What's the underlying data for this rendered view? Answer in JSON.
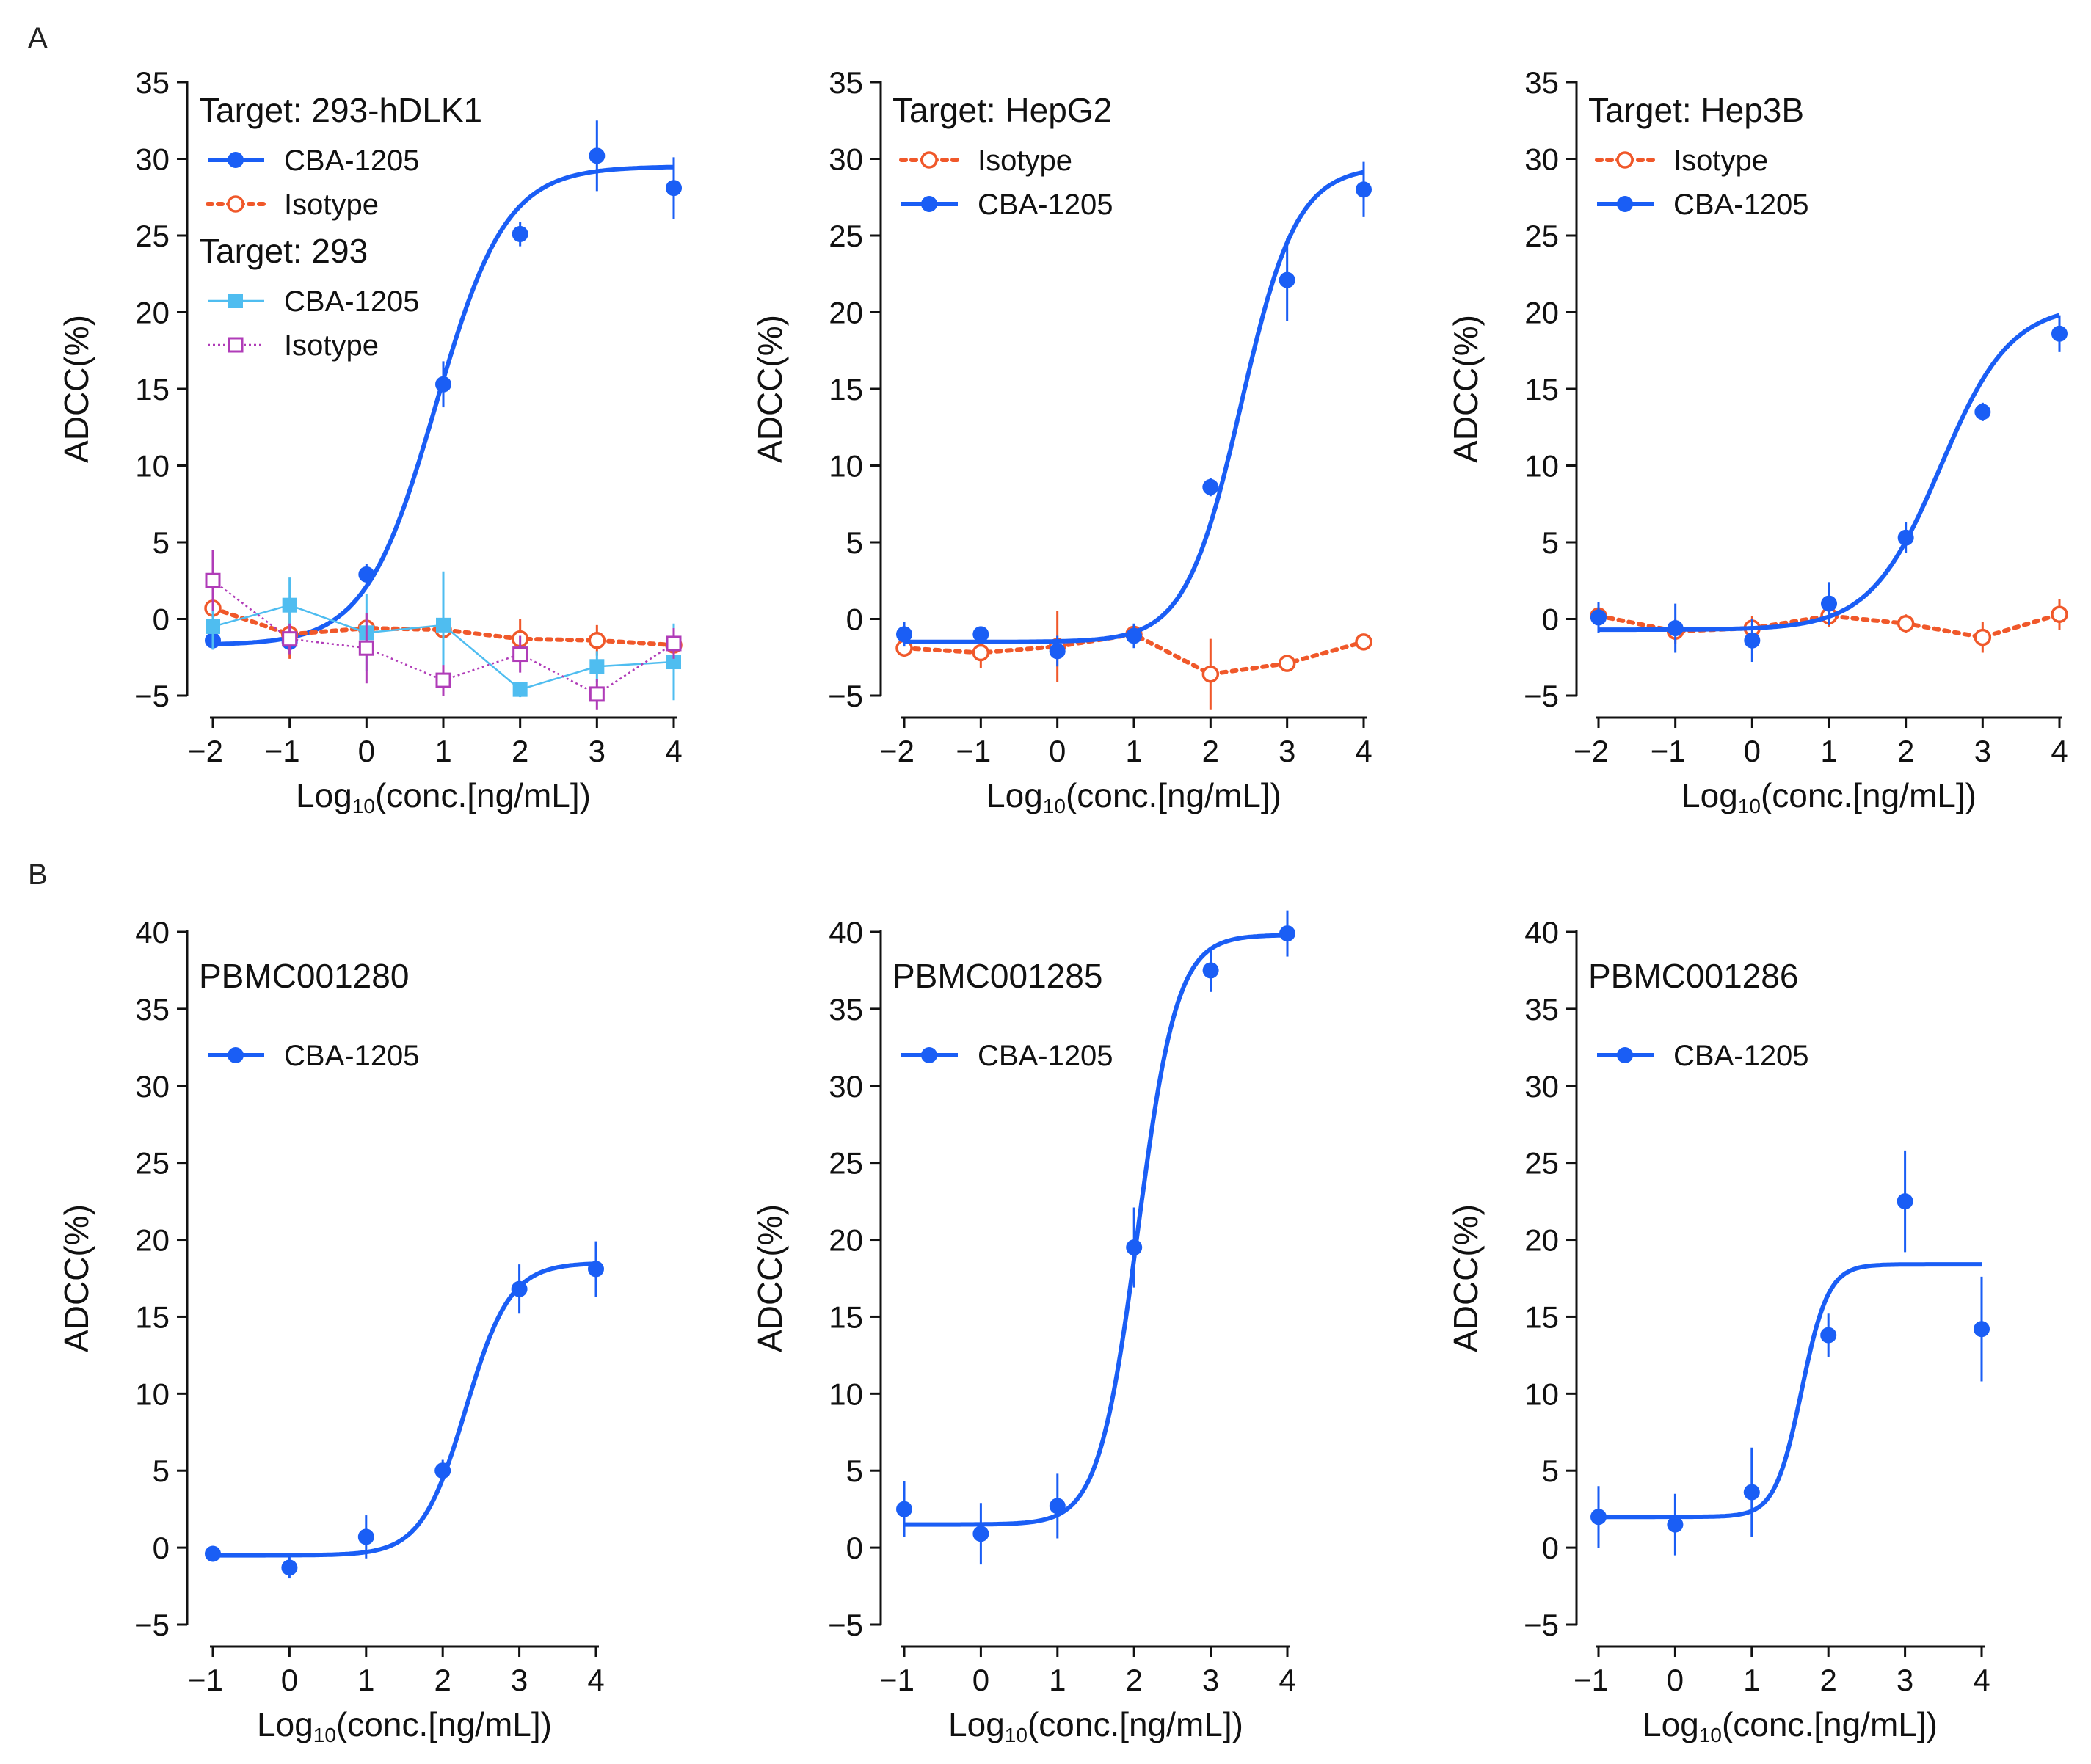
{
  "panel_labels": {
    "A": "A",
    "B": "B"
  },
  "colors": {
    "blue": "#1a5ef5",
    "orange": "#f0582a",
    "lightblue": "#4fbdf0",
    "purple": "#b03cb8",
    "axis": "#111111"
  },
  "chart_data": [
    {
      "type": "line",
      "panel": "A",
      "ylabel": "ADCC(%)",
      "xlabel": "Log10(conc.[ng/mL])",
      "ylim": [
        -5,
        35
      ],
      "xlim": [
        -2,
        4
      ],
      "yticks": [
        -5,
        0,
        5,
        10,
        15,
        20,
        25,
        30,
        35
      ],
      "xticks": [
        -2,
        -1,
        0,
        1,
        2,
        3,
        4
      ],
      "annotations": [
        "Target: 293-hDLK1",
        "Target: 293"
      ],
      "legend": [
        {
          "label": "CBA-1205",
          "series": 0
        },
        {
          "label": "Isotype",
          "series": 1
        },
        {
          "label": "CBA-1205",
          "series": 2
        },
        {
          "label": "Isotype",
          "series": 3
        }
      ],
      "series": [
        {
          "name": "CBA-1205",
          "target": "293-hDLK1",
          "color": "#1a5ef5",
          "marker": "circle-filled",
          "line": "sigmoid",
          "x": [
            -2,
            -1,
            0,
            1,
            2,
            3,
            4
          ],
          "y": [
            -1.4,
            -1.5,
            2.9,
            15.3,
            25.1,
            30.2,
            28.1
          ],
          "err": [
            0.6,
            0.8,
            0.7,
            1.5,
            0.8,
            2.3,
            2.0
          ],
          "fit": {
            "bottom": -1.7,
            "top": 29.5,
            "logEC50": 0.9,
            "hill": 0.95
          }
        },
        {
          "name": "Isotype",
          "target": "293-hDLK1",
          "color": "#f0582a",
          "marker": "circle-open",
          "line": "dotted",
          "x": [
            -2,
            -1,
            0,
            1,
            2,
            3,
            4
          ],
          "y": [
            0.7,
            -1.0,
            -0.6,
            -0.7,
            -1.3,
            -1.4,
            -1.7
          ],
          "err": [
            1.0,
            1.6,
            1.0,
            1.2,
            1.3,
            1.0,
            0.7
          ]
        },
        {
          "name": "CBA-1205",
          "target": "293",
          "color": "#4fbdf0",
          "marker": "square-filled",
          "line": "solid-thin",
          "x": [
            -2,
            -1,
            0,
            1,
            2,
            3,
            4
          ],
          "y": [
            -0.5,
            0.9,
            -0.9,
            -0.4,
            -4.6,
            -3.1,
            -2.8
          ],
          "err": [
            1.5,
            1.8,
            2.5,
            3.5,
            0.5,
            1.0,
            2.5
          ]
        },
        {
          "name": "Isotype",
          "target": "293",
          "color": "#b03cb8",
          "marker": "square-open",
          "line": "dotted-thin",
          "x": [
            -2,
            -1,
            0,
            1,
            2,
            3,
            4
          ],
          "y": [
            2.5,
            -1.3,
            -1.9,
            -4.0,
            -2.3,
            -4.9,
            -1.6
          ],
          "err": [
            2.0,
            1.0,
            2.3,
            1.0,
            1.2,
            1.0,
            1.0
          ]
        }
      ]
    },
    {
      "type": "line",
      "panel": "A",
      "ylabel": "ADCC(%)",
      "xlabel": "Log10(conc.[ng/mL])",
      "ylim": [
        -5,
        35
      ],
      "xlim": [
        -2,
        4
      ],
      "yticks": [
        -5,
        0,
        5,
        10,
        15,
        20,
        25,
        30,
        35
      ],
      "xticks": [
        -2,
        -1,
        0,
        1,
        2,
        3,
        4
      ],
      "annotations": [
        "Target: HepG2"
      ],
      "legend": [
        {
          "label": "Isotype",
          "series": 0
        },
        {
          "label": "CBA-1205",
          "series": 1
        }
      ],
      "series": [
        {
          "name": "Isotype",
          "color": "#f0582a",
          "marker": "circle-open",
          "line": "dotted",
          "x": [
            -2,
            -1,
            0,
            1,
            2,
            3,
            4
          ],
          "y": [
            -1.9,
            -2.2,
            -1.8,
            -1.0,
            -3.6,
            -2.9,
            -1.5
          ],
          "err": [
            0.6,
            1.0,
            2.3,
            0.6,
            2.3,
            0.5,
            0.5
          ]
        },
        {
          "name": "CBA-1205",
          "color": "#1a5ef5",
          "marker": "circle-filled",
          "line": "sigmoid",
          "x": [
            -2,
            -1,
            0,
            1,
            2,
            3,
            4
          ],
          "y": [
            -1.0,
            -1.0,
            -2.1,
            -1.1,
            8.6,
            22.1,
            28.0
          ],
          "err": [
            0.8,
            0.5,
            1.0,
            0.8,
            0.6,
            2.7,
            1.8
          ],
          "fit": {
            "bottom": -1.5,
            "top": 29.5,
            "logEC50": 2.4,
            "hill": 1.2
          }
        }
      ]
    },
    {
      "type": "line",
      "panel": "A",
      "ylabel": "ADCC(%)",
      "xlabel": "Log10(conc.[ng/mL])",
      "ylim": [
        -5,
        35
      ],
      "xlim": [
        -2,
        4
      ],
      "yticks": [
        -5,
        0,
        5,
        10,
        15,
        20,
        25,
        30,
        35
      ],
      "xticks": [
        -2,
        -1,
        0,
        1,
        2,
        3,
        4
      ],
      "annotations": [
        "Target: Hep3B"
      ],
      "legend": [
        {
          "label": "Isotype",
          "series": 0
        },
        {
          "label": "CBA-1205",
          "series": 1
        }
      ],
      "series": [
        {
          "name": "Isotype",
          "color": "#f0582a",
          "marker": "circle-open",
          "line": "dotted",
          "x": [
            -2,
            -1,
            0,
            1,
            2,
            3,
            4
          ],
          "y": [
            0.2,
            -0.8,
            -0.6,
            0.2,
            -0.3,
            -1.2,
            0.3
          ],
          "err": [
            0.8,
            0.8,
            0.8,
            0.7,
            0.6,
            1.0,
            1.0
          ]
        },
        {
          "name": "CBA-1205",
          "color": "#1a5ef5",
          "marker": "circle-filled",
          "line": "sigmoid",
          "x": [
            -2,
            -1,
            0,
            1,
            2,
            3,
            4
          ],
          "y": [
            0.1,
            -0.6,
            -1.4,
            1.0,
            5.3,
            13.5,
            18.6
          ],
          "err": [
            1.0,
            1.6,
            1.4,
            1.4,
            1.0,
            0.6,
            1.2
          ],
          "fit": {
            "bottom": -0.7,
            "top": 20.5,
            "logEC50": 2.45,
            "hill": 0.95
          }
        }
      ]
    },
    {
      "type": "line",
      "panel": "B",
      "ylabel": "ADCC(%)",
      "xlabel": "Log10(conc.[ng/mL])",
      "ylim": [
        -5,
        40
      ],
      "xlim": [
        -1,
        4
      ],
      "yticks": [
        -5,
        0,
        5,
        10,
        15,
        20,
        25,
        30,
        35,
        40
      ],
      "xticks": [
        -1,
        0,
        1,
        2,
        3,
        4
      ],
      "annotations": [
        "PBMC001280"
      ],
      "legend": [
        {
          "label": "CBA-1205",
          "series": 0
        }
      ],
      "series": [
        {
          "name": "CBA-1205",
          "color": "#1a5ef5",
          "marker": "circle-filled",
          "line": "sigmoid",
          "x": [
            -1,
            0,
            1,
            2,
            3,
            4
          ],
          "y": [
            -0.4,
            -1.3,
            0.7,
            5.0,
            16.8,
            18.1
          ],
          "err": [
            0.4,
            0.7,
            1.4,
            0.7,
            1.6,
            1.8
          ],
          "fit": {
            "bottom": -0.5,
            "top": 18.5,
            "logEC50": 2.3,
            "hill": 1.5
          }
        }
      ]
    },
    {
      "type": "line",
      "panel": "B",
      "ylabel": "ADCC(%)",
      "xlabel": "Log10(conc.[ng/mL])",
      "ylim": [
        -5,
        40
      ],
      "xlim": [
        -1,
        4
      ],
      "yticks": [
        -5,
        0,
        5,
        10,
        15,
        20,
        25,
        30,
        35,
        40
      ],
      "xticks": [
        -1,
        0,
        1,
        2,
        3,
        4
      ],
      "annotations": [
        "PBMC001285"
      ],
      "legend": [
        {
          "label": "CBA-1205",
          "series": 0
        }
      ],
      "series": [
        {
          "name": "CBA-1205",
          "color": "#1a5ef5",
          "marker": "circle-filled",
          "line": "sigmoid",
          "x": [
            -1,
            0,
            1,
            2,
            3,
            4
          ],
          "y": [
            2.5,
            0.9,
            2.7,
            19.5,
            37.5,
            39.9
          ],
          "err": [
            1.8,
            2.0,
            2.1,
            2.6,
            1.4,
            1.5
          ],
          "fit": {
            "bottom": 1.5,
            "top": 39.8,
            "logEC50": 2.05,
            "hill": 1.7
          }
        }
      ]
    },
    {
      "type": "line",
      "panel": "B",
      "ylabel": "ADCC(%)",
      "xlabel": "Log10(conc.[ng/mL])",
      "ylim": [
        -5,
        40
      ],
      "xlim": [
        -1,
        4
      ],
      "yticks": [
        -5,
        0,
        5,
        10,
        15,
        20,
        25,
        30,
        35,
        40
      ],
      "xticks": [
        -1,
        0,
        1,
        2,
        3,
        4
      ],
      "annotations": [
        "PBMC001286"
      ],
      "legend": [
        {
          "label": "CBA-1205",
          "series": 0
        }
      ],
      "series": [
        {
          "name": "CBA-1205",
          "color": "#1a5ef5",
          "marker": "circle-filled",
          "line": "sigmoid",
          "x": [
            -1,
            0,
            1,
            2,
            3,
            4
          ],
          "y": [
            2.0,
            1.5,
            3.6,
            13.8,
            22.5,
            14.2
          ],
          "err": [
            2.0,
            2.0,
            2.9,
            1.4,
            3.3,
            3.4
          ],
          "fit": {
            "bottom": 2.0,
            "top": 18.4,
            "logEC50": 1.65,
            "hill": 2.5
          }
        }
      ]
    }
  ]
}
